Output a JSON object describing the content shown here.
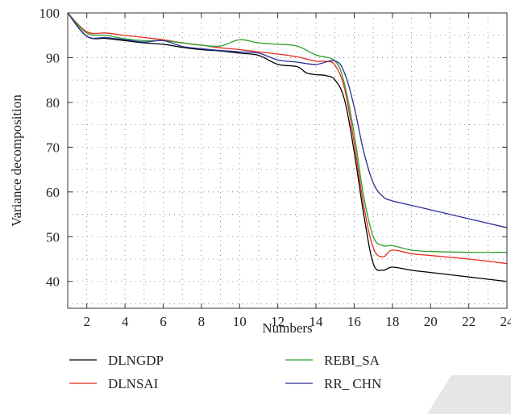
{
  "chart_data": {
    "type": "line",
    "title": "",
    "xlabel": "Numbers",
    "ylabel": "Variance decomposition",
    "xlim": [
      1,
      24
    ],
    "ylim": [
      34,
      100
    ],
    "xticks": [
      2,
      4,
      6,
      8,
      10,
      12,
      14,
      16,
      18,
      20,
      22,
      24
    ],
    "yticks": [
      40,
      50,
      60,
      70,
      80,
      90,
      100
    ],
    "grid": "dotted",
    "legend_position": "bottom",
    "series": [
      {
        "name": "DLNGDP",
        "color": "#000000",
        "points": [
          [
            1,
            100
          ],
          [
            2,
            94.8
          ],
          [
            3,
            94.3
          ],
          [
            4,
            93.8
          ],
          [
            5,
            93.3
          ],
          [
            6,
            93.0
          ],
          [
            7,
            92.3
          ],
          [
            8,
            91.8
          ],
          [
            9,
            91.5
          ],
          [
            10,
            91.0
          ],
          [
            11,
            90.5
          ],
          [
            12,
            88.5
          ],
          [
            13,
            88.0
          ],
          [
            13.5,
            86.6
          ],
          [
            14,
            86.2
          ],
          [
            14.5,
            86.0
          ],
          [
            15,
            85.0
          ],
          [
            15.5,
            80.5
          ],
          [
            16,
            69.0
          ],
          [
            16.5,
            55.0
          ],
          [
            17,
            44.0
          ],
          [
            17.5,
            42.5
          ],
          [
            18,
            43.2
          ],
          [
            19,
            42.5
          ],
          [
            20,
            42.0
          ],
          [
            22,
            41.0
          ],
          [
            24,
            40.0
          ]
        ]
      },
      {
        "name": "DLNSAI",
        "color": "#e8291c",
        "points": [
          [
            1,
            100
          ],
          [
            2,
            95.8
          ],
          [
            3,
            95.5
          ],
          [
            4,
            95.0
          ],
          [
            5,
            94.5
          ],
          [
            6,
            94.0
          ],
          [
            7,
            93.3
          ],
          [
            8,
            92.8
          ],
          [
            9,
            92.2
          ],
          [
            10,
            91.8
          ],
          [
            11,
            91.3
          ],
          [
            12,
            90.8
          ],
          [
            13,
            90.2
          ],
          [
            14,
            89.2
          ],
          [
            14.5,
            89.2
          ],
          [
            15,
            88.3
          ],
          [
            15.5,
            83.0
          ],
          [
            16,
            71.0
          ],
          [
            16.5,
            57.0
          ],
          [
            17,
            47.5
          ],
          [
            17.5,
            45.5
          ],
          [
            18,
            47.0
          ],
          [
            19,
            46.2
          ],
          [
            20,
            45.8
          ],
          [
            22,
            45.0
          ],
          [
            24,
            44.0
          ]
        ]
      },
      {
        "name": "REBI_SA",
        "color": "#2ca02c",
        "points": [
          [
            1,
            100
          ],
          [
            2,
            95.5
          ],
          [
            3,
            95.0
          ],
          [
            4,
            94.2
          ],
          [
            5,
            93.8
          ],
          [
            6,
            93.8
          ],
          [
            7,
            93.3
          ],
          [
            8,
            92.8
          ],
          [
            9,
            92.6
          ],
          [
            10,
            94.0
          ],
          [
            11,
            93.3
          ],
          [
            12,
            93.0
          ],
          [
            13,
            92.6
          ],
          [
            14,
            90.6
          ],
          [
            15,
            89.2
          ],
          [
            15.5,
            84.0
          ],
          [
            16,
            73.0
          ],
          [
            16.5,
            59.0
          ],
          [
            17,
            50.0
          ],
          [
            17.5,
            48.0
          ],
          [
            18,
            48.0
          ],
          [
            19,
            47.0
          ],
          [
            20,
            46.7
          ],
          [
            22,
            46.5
          ],
          [
            24,
            46.5
          ]
        ]
      },
      {
        "name": "RR_ CHN",
        "color": "#2b2f96",
        "points": [
          [
            1,
            100
          ],
          [
            2,
            94.8
          ],
          [
            3,
            94.5
          ],
          [
            4,
            94.0
          ],
          [
            5,
            93.5
          ],
          [
            6,
            93.8
          ],
          [
            7,
            92.5
          ],
          [
            8,
            92.0
          ],
          [
            9,
            91.6
          ],
          [
            10,
            91.3
          ],
          [
            11,
            91.0
          ],
          [
            12,
            89.5
          ],
          [
            13,
            89.0
          ],
          [
            14,
            88.5
          ],
          [
            15,
            89.3
          ],
          [
            15.5,
            86.5
          ],
          [
            16,
            79.0
          ],
          [
            16.5,
            69.0
          ],
          [
            17,
            62.0
          ],
          [
            17.5,
            59.0
          ],
          [
            18,
            58.0
          ],
          [
            19,
            57.0
          ],
          [
            20,
            56.0
          ],
          [
            22,
            54.0
          ],
          [
            24,
            52.0
          ]
        ]
      }
    ]
  }
}
